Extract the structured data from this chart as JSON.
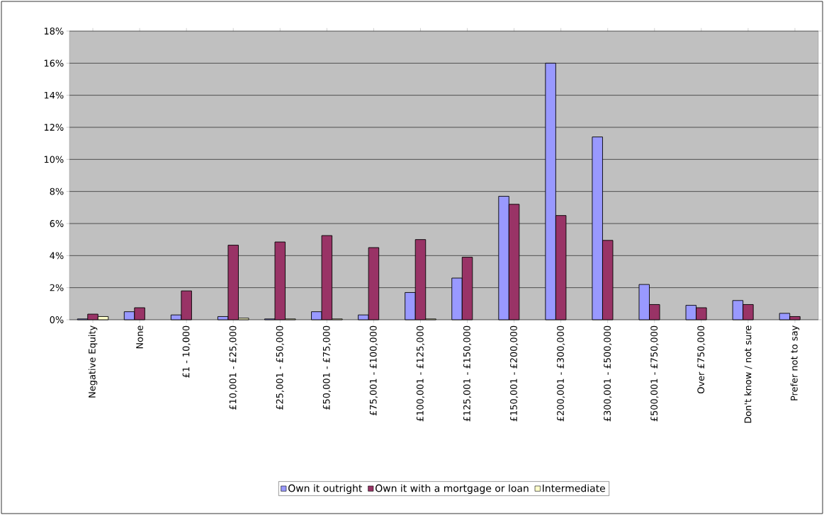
{
  "chart_data": {
    "type": "bar",
    "categories": [
      "Negative Equity",
      "None",
      "£1 - 10,000",
      "£10,001 - £25,000",
      "£25,001 - £50,000",
      "£50,001 - £75,000",
      "£75,001 - £100,000",
      "£100,001 - £125,000",
      "£125,001 - £150,000",
      "£150,001 - £200,000",
      "£200,001 - £300,000",
      "£300,001 - £500,000",
      "£500,001 - £750,000",
      "Over £750,000",
      "Don't know / not sure",
      "Prefer not to say"
    ],
    "series": [
      {
        "name": "Own it outright",
        "color": "#9999ff",
        "values": [
          0.05,
          0.5,
          0.3,
          0.2,
          0.05,
          0.5,
          0.3,
          1.7,
          2.6,
          7.7,
          16.0,
          11.4,
          2.2,
          0.9,
          1.2,
          0.4
        ]
      },
      {
        "name": "Own it with a mortgage or loan",
        "color": "#993366",
        "values": [
          0.35,
          0.75,
          1.8,
          4.65,
          4.85,
          5.25,
          4.5,
          5.0,
          3.9,
          7.2,
          6.5,
          4.95,
          0.95,
          0.75,
          0.95,
          0.2
        ]
      },
      {
        "name": "Intermediate",
        "color": "#ffffcc",
        "values": [
          0.2,
          null,
          null,
          0.1,
          0.05,
          0.05,
          null,
          0.05,
          null,
          null,
          null,
          null,
          null,
          null,
          null,
          null
        ]
      }
    ],
    "ylim": [
      0,
      18
    ],
    "yticks": [
      {
        "value": 0,
        "label": "0%"
      },
      {
        "value": 2,
        "label": "2%"
      },
      {
        "value": 4,
        "label": "4%"
      },
      {
        "value": 6,
        "label": "6%"
      },
      {
        "value": 8,
        "label": "8%"
      },
      {
        "value": 10,
        "label": "10%"
      },
      {
        "value": 12,
        "label": "12%"
      },
      {
        "value": 14,
        "label": "14%"
      },
      {
        "value": 16,
        "label": "16%"
      },
      {
        "value": 18,
        "label": "18%"
      }
    ],
    "grid": "y",
    "legend": "bottom"
  }
}
